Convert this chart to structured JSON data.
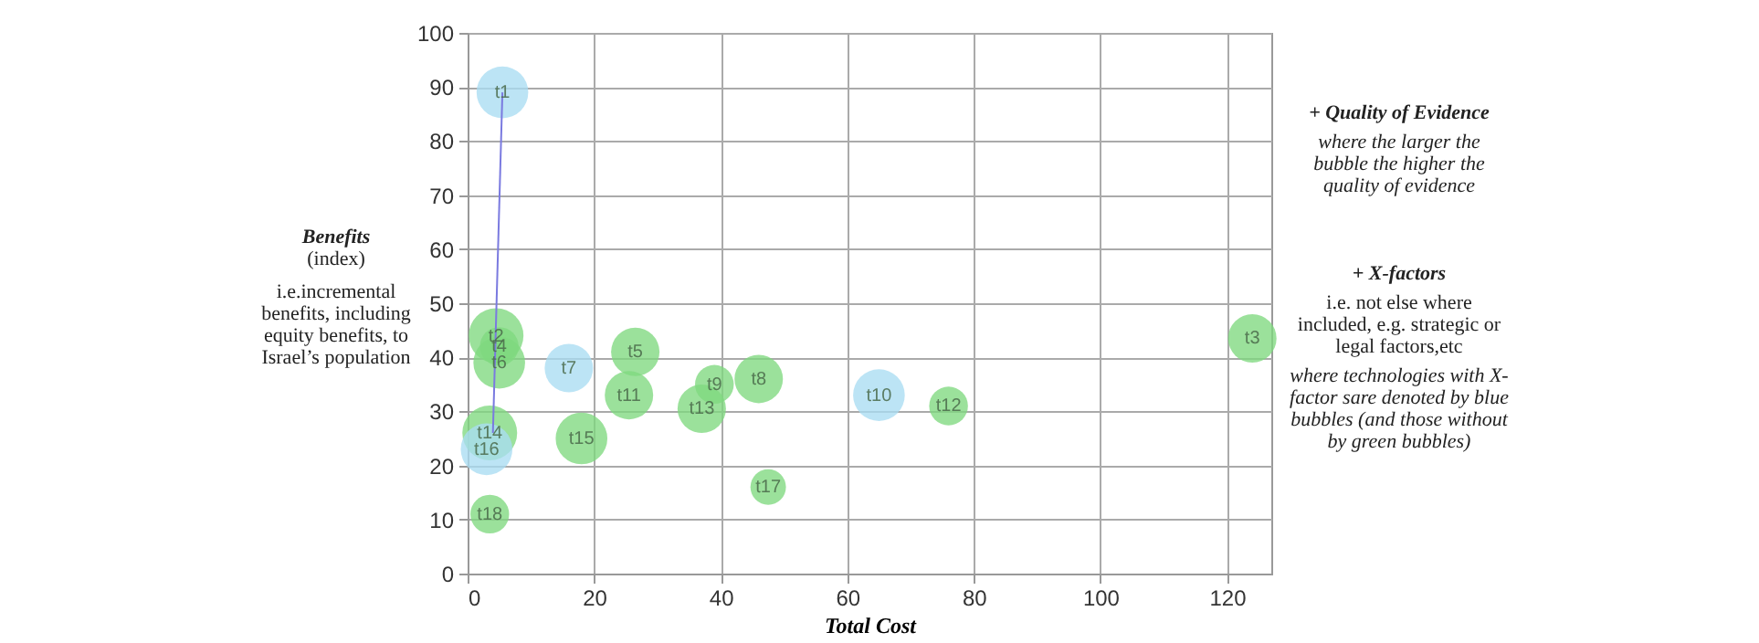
{
  "chart_data": {
    "type": "bubble",
    "xlabel": "Total Cost",
    "ylabel": "Benefits",
    "xlim": [
      0,
      127
    ],
    "ylim": [
      0,
      100
    ],
    "xticks": [
      0,
      20,
      40,
      60,
      80,
      100,
      120
    ],
    "yticks": [
      0,
      10,
      20,
      30,
      40,
      50,
      60,
      70,
      80,
      90,
      100
    ],
    "grid": true,
    "series": [
      {
        "color": "#7fd87f",
        "x": [
          4.5,
          5,
          5,
          3.5,
          3.5,
          26.5,
          25.5,
          18,
          39,
          37,
          46,
          47.5,
          76,
          124
        ],
        "values": [
          44,
          42,
          39,
          26,
          11,
          41,
          33,
          25,
          35,
          30.5,
          36,
          16,
          31,
          43.5
        ],
        "sizes": [
          1,
          0.5,
          0.89,
          1,
          0.5,
          0.78,
          0.78,
          0.89,
          0.5,
          0.78,
          0.78,
          0.42,
          0.5,
          0.78
        ]
      },
      {
        "color": "#a9dcf2",
        "x": [
          5.5,
          3,
          16,
          65
        ],
        "values": [
          89,
          23,
          38,
          33
        ],
        "sizes": [
          0.89,
          0.89,
          0.78,
          0.89
        ]
      },
      {
        "type": "line",
        "color": "#7a7ae0",
        "x": [
          5.5,
          4
        ],
        "values": [
          89,
          26
        ]
      }
    ],
    "annotations": [
      "(index)",
      "i.e.incremental benefits, including equity benefits, to Israel’s population",
      "+ Quality of Evidence",
      "where the larger the bubble the higher the quality of evidence",
      "+ X-factors",
      "i.e. not else where included, e.g. strategic or legal factors,etc",
      "where technologies with X-factor sare denoted by blue bubbles (and those without by green bubbles)",
      {
        "text": "t1",
        "x": 5.5,
        "y": 89
      },
      {
        "text": "t2",
        "x": 4.5,
        "y": 44
      },
      {
        "text": "t4",
        "x": 5,
        "y": 42
      },
      {
        "text": "t6",
        "x": 5,
        "y": 39
      },
      {
        "text": "t14",
        "x": 3.5,
        "y": 26
      },
      {
        "text": "t16",
        "x": 3,
        "y": 23
      },
      {
        "text": "t18",
        "x": 3.5,
        "y": 11
      },
      {
        "text": "t7",
        "x": 16,
        "y": 38
      },
      {
        "text": "t5",
        "x": 26.5,
        "y": 41
      },
      {
        "text": "t11",
        "x": 25.5,
        "y": 33
      },
      {
        "text": "t15",
        "x": 18,
        "y": 25
      },
      {
        "text": "t9",
        "x": 39,
        "y": 35
      },
      {
        "text": "t13",
        "x": 37,
        "y": 30.5
      },
      {
        "text": "t8",
        "x": 46,
        "y": 36
      },
      {
        "text": "t17",
        "x": 47.5,
        "y": 16
      },
      {
        "text": "t10",
        "x": 65,
        "y": 33
      },
      {
        "text": "t12",
        "x": 76,
        "y": 31
      },
      {
        "text": "t3",
        "x": 124,
        "y": 43.5
      }
    ]
  }
}
